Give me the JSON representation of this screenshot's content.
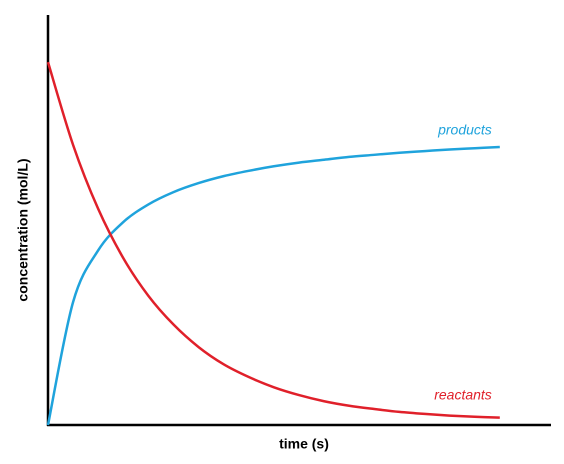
{
  "chart_data": {
    "type": "line",
    "x_label": "time (s)",
    "y_label": "concentration (mol/L)",
    "xlim": [
      0,
      100
    ],
    "ylim": [
      0,
      100
    ],
    "x": [
      0,
      5,
      10,
      15,
      20,
      25,
      30,
      35,
      40,
      45,
      50,
      55,
      60,
      65,
      70,
      75,
      80,
      85,
      90
    ],
    "series": [
      {
        "name": "products",
        "color": "#1fa3dc",
        "values": [
          0,
          30.0,
          42.6,
          49.5,
          53.8,
          56.8,
          59.0,
          60.7,
          62.0,
          63.1,
          64.0,
          64.7,
          65.4,
          65.9,
          66.4,
          66.8,
          67.2,
          67.5,
          67.8
        ]
      },
      {
        "name": "reactants",
        "color": "#e0202a",
        "values": [
          88.5,
          68.3,
          52.7,
          40.7,
          31.5,
          24.5,
          19.0,
          14.8,
          11.7,
          9.2,
          7.3,
          5.8,
          4.7,
          3.9,
          3.2,
          2.7,
          2.3,
          2.0,
          1.8
        ]
      }
    ]
  }
}
